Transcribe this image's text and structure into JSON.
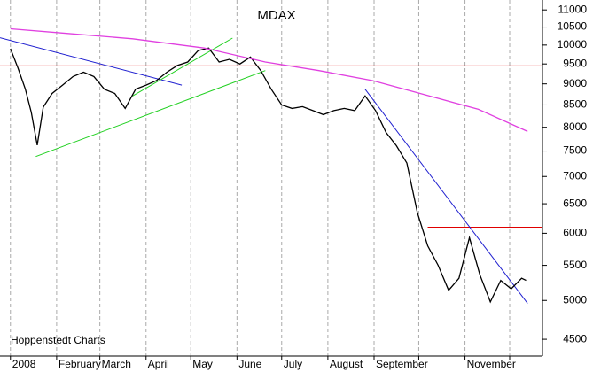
{
  "chart_data": {
    "type": "line",
    "title": "MDAX",
    "source": "Hoppenstedt Charts",
    "log_scale": true,
    "grid": "x",
    "y_axis_side": "right",
    "xlim": [
      -7,
      357
    ],
    "ylim": [
      4300,
      11300
    ],
    "xticks": [
      {
        "value": 0,
        "label": "2008"
      },
      {
        "value": 31,
        "label": "February"
      },
      {
        "value": 60,
        "label": "March"
      },
      {
        "value": 91,
        "label": "April"
      },
      {
        "value": 121,
        "label": "May"
      },
      {
        "value": 152,
        "label": "June"
      },
      {
        "value": 182,
        "label": "July"
      },
      {
        "value": 213,
        "label": "August"
      },
      {
        "value": 244,
        "label": "September"
      },
      {
        "value": 274,
        "label": null
      },
      {
        "value": 305,
        "label": "November"
      },
      {
        "value": 335,
        "label": null
      }
    ],
    "yticks": [
      4500,
      5000,
      5500,
      6000,
      6500,
      7000,
      7500,
      8000,
      8500,
      9000,
      9500,
      10000,
      10500,
      11000
    ],
    "series": [
      {
        "color": "#000000",
        "x": [
          0,
          5,
          10,
          14,
          18,
          22,
          28,
          35,
          42,
          49,
          56,
          63,
          70,
          77,
          84,
          91,
          98,
          105,
          112,
          119,
          126,
          133,
          140,
          147,
          154,
          161,
          168,
          175,
          182,
          189,
          196,
          203,
          210,
          217,
          224,
          231,
          238,
          245,
          252,
          259,
          266,
          273,
          280,
          287,
          294,
          301,
          308,
          315,
          322,
          329,
          336,
          343,
          346
        ],
        "values": [
          9900,
          9400,
          8870,
          8330,
          7620,
          8450,
          8770,
          8970,
          9180,
          9290,
          9180,
          8870,
          8770,
          8420,
          8870,
          8970,
          9080,
          9290,
          9460,
          9550,
          9850,
          9920,
          9550,
          9620,
          9500,
          9680,
          9330,
          8870,
          8500,
          8420,
          8460,
          8370,
          8280,
          8370,
          8420,
          8370,
          8710,
          8370,
          7890,
          7610,
          7260,
          6350,
          5800,
          5500,
          5140,
          5310,
          5930,
          5360,
          4980,
          5280,
          5160,
          5310,
          5280
        ]
      },
      {
        "color": "#e040e0",
        "x": [
          0,
          35,
          82,
          130,
          171,
          207,
          243,
          279,
          314,
          347
        ],
        "values": [
          10450,
          10330,
          10170,
          9920,
          9550,
          9330,
          9080,
          8730,
          8400,
          7910
        ]
      }
    ],
    "lines": [
      {
        "color": "#e00000",
        "x": [
          -7,
          357
        ],
        "values": [
          9450,
          9450
        ]
      },
      {
        "color": "#e00000",
        "x": [
          280,
          357
        ],
        "values": [
          6100,
          6100
        ]
      },
      {
        "color": "#2020d0",
        "x": [
          -7,
          115
        ],
        "values": [
          10200,
          8970
        ]
      },
      {
        "color": "#2020d0",
        "x": [
          238,
          347
        ],
        "values": [
          8870,
          4960
        ]
      },
      {
        "color": "#20d020",
        "x": [
          17,
          171
        ],
        "values": [
          7390,
          9330
        ]
      },
      {
        "color": "#20d020",
        "x": [
          82,
          149
        ],
        "values": [
          8710,
          10190
        ]
      }
    ]
  }
}
